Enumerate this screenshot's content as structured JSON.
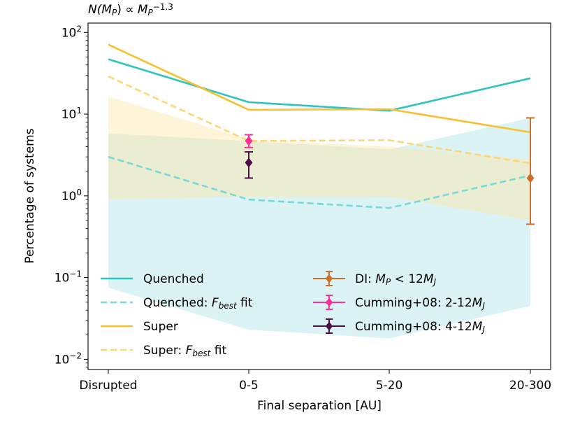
{
  "chart_data": {
    "type": "line",
    "title_parts": [
      {
        "text": "N(",
        "italic": true
      },
      {
        "text": "M",
        "italic": true
      },
      {
        "text": "P",
        "italic": true,
        "sub": true
      },
      {
        "text": ") ∝ ",
        "italic": false
      },
      {
        "text": "M",
        "italic": true
      },
      {
        "text": "P",
        "italic": true,
        "sub": true
      },
      {
        "text": "−1.3",
        "italic": false,
        "sup": true
      }
    ],
    "xlabel": "Final separation [AU]",
    "ylabel": "Percentage of systems",
    "yscale": "log",
    "ylim": [
      0.0075,
      130
    ],
    "categories": [
      "Disrupted",
      "0-5",
      "5-20",
      "20-300"
    ],
    "yticks": [
      {
        "base": "10",
        "exp": "−2",
        "value": 0.01
      },
      {
        "base": "10",
        "exp": "−1",
        "value": 0.1
      },
      {
        "base": "10",
        "exp": "0",
        "value": 1
      },
      {
        "base": "10",
        "exp": "1",
        "value": 10
      },
      {
        "base": "10",
        "exp": "2",
        "value": 100
      }
    ],
    "bands": [
      {
        "name": "Quenched range",
        "color": "#bfeaec",
        "opacity": 0.55,
        "lower": [
          0.075,
          0.023,
          0.018,
          0.045
        ],
        "upper": [
          5.8,
          4.7,
          3.7,
          9.0
        ]
      },
      {
        "name": "Super range",
        "color": "#fce7a8",
        "opacity": 0.45,
        "lower": [
          0.9,
          0.98,
          0.97,
          0.5
        ],
        "upper": [
          16.5,
          4.9,
          4.0,
          2.8
        ]
      }
    ],
    "series": [
      {
        "name": "Quenched",
        "color": "#2ec4c0",
        "dash": "solid",
        "width": 2.6,
        "values": [
          47,
          14,
          11,
          27.5
        ]
      },
      {
        "name": "Quenched: F_best fit",
        "color": "#79d9d6",
        "dash": "dashed",
        "width": 2.6,
        "values": [
          3.0,
          0.9,
          0.71,
          1.78
        ]
      },
      {
        "name": "Super",
        "color": "#f8c02c",
        "dash": "solid",
        "width": 2.6,
        "values": [
          71,
          11.3,
          11.5,
          6.0
        ]
      },
      {
        "name": "Super: F_best fit",
        "color": "#fbd776",
        "dash": "dashed",
        "width": 2.6,
        "values": [
          29,
          4.7,
          4.8,
          2.5
        ]
      }
    ],
    "points": [
      {
        "name": "DI: M_P < 12M_J",
        "color": "#cc6f2c",
        "category": 3,
        "value": 1.65,
        "low": 0.45,
        "high": 9.0
      },
      {
        "name": "Cumming+08: 2-12M_J",
        "color": "#ff2d96",
        "category": 1,
        "value": 4.7,
        "low": 3.9,
        "high": 5.6
      },
      {
        "name": "Cumming+08: 4-12M_J",
        "color": "#4b0f45",
        "category": 1,
        "value": 2.55,
        "low": 1.65,
        "high": 3.45
      }
    ],
    "legend": {
      "position": "lower-center",
      "left": [
        {
          "label_parts": [
            {
              "text": "Quenched"
            }
          ]
        },
        {
          "label_parts": [
            {
              "text": "Quenched: "
            },
            {
              "text": "F",
              "italic": true
            },
            {
              "text": "best",
              "italic": true,
              "sub": true
            },
            {
              "text": " fit"
            }
          ]
        },
        {
          "label_parts": [
            {
              "text": "Super"
            }
          ]
        },
        {
          "label_parts": [
            {
              "text": "Super: "
            },
            {
              "text": "F",
              "italic": true
            },
            {
              "text": "best",
              "italic": true,
              "sub": true
            },
            {
              "text": " fit"
            }
          ]
        }
      ],
      "right": [
        {
          "label_parts": [
            {
              "text": "DI: "
            },
            {
              "text": "M",
              "italic": true
            },
            {
              "text": "P",
              "italic": true,
              "sub": true
            },
            {
              "text": " < 12"
            },
            {
              "text": "M",
              "italic": true
            },
            {
              "text": "J",
              "italic": true,
              "sub": true
            }
          ]
        },
        {
          "label_parts": [
            {
              "text": "Cumming+08: 2-12"
            },
            {
              "text": "M",
              "italic": true
            },
            {
              "text": "J",
              "italic": true,
              "sub": true
            }
          ]
        },
        {
          "label_parts": [
            {
              "text": "Cumming+08: 4-12"
            },
            {
              "text": "M",
              "italic": true
            },
            {
              "text": "J",
              "italic": true,
              "sub": true
            }
          ]
        }
      ]
    }
  }
}
